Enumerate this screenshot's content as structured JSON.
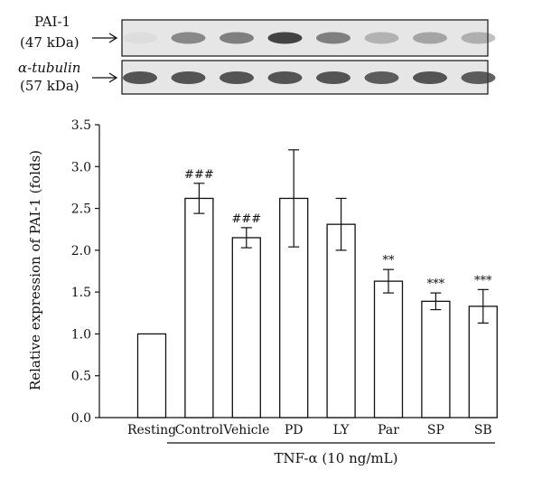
{
  "blot": {
    "rows": [
      {
        "name": "PAI-1",
        "size": "(47 kDa)",
        "intensity": [
          0.05,
          0.55,
          0.6,
          0.95,
          0.6,
          0.3,
          0.38,
          0.32
        ]
      },
      {
        "name": "α-tubulin",
        "size": "(57 kDa)",
        "intensity": [
          0.85,
          0.85,
          0.85,
          0.85,
          0.85,
          0.8,
          0.85,
          0.8
        ]
      }
    ],
    "arrow": "⟶"
  },
  "chart_data": {
    "type": "bar",
    "categories": [
      "Resting",
      "Control",
      "Vehicle",
      "PD",
      "LY",
      "Par",
      "SP",
      "SB"
    ],
    "values": [
      1.0,
      2.62,
      2.15,
      2.62,
      2.31,
      1.63,
      1.39,
      1.33
    ],
    "errors": [
      0,
      0.18,
      0.12,
      0.58,
      0.31,
      0.14,
      0.1,
      0.2
    ],
    "significance": [
      "",
      "###",
      "###",
      "",
      "",
      "**",
      "***",
      "***"
    ],
    "ylabel": "Relative expression of PAI-1 (folds)",
    "ylim": [
      0,
      3.5
    ],
    "yticks": [
      "0.0",
      "0.5",
      "1.0",
      "1.5",
      "2.0",
      "2.5",
      "3.0",
      "3.5"
    ],
    "group_label": "TNF-α (10 ng/mL)",
    "colors": {
      "bar_fill": "#ffffff",
      "stroke": "#111111",
      "blot_bg": "#e6e6e6",
      "band": "#3a3a3a"
    }
  }
}
